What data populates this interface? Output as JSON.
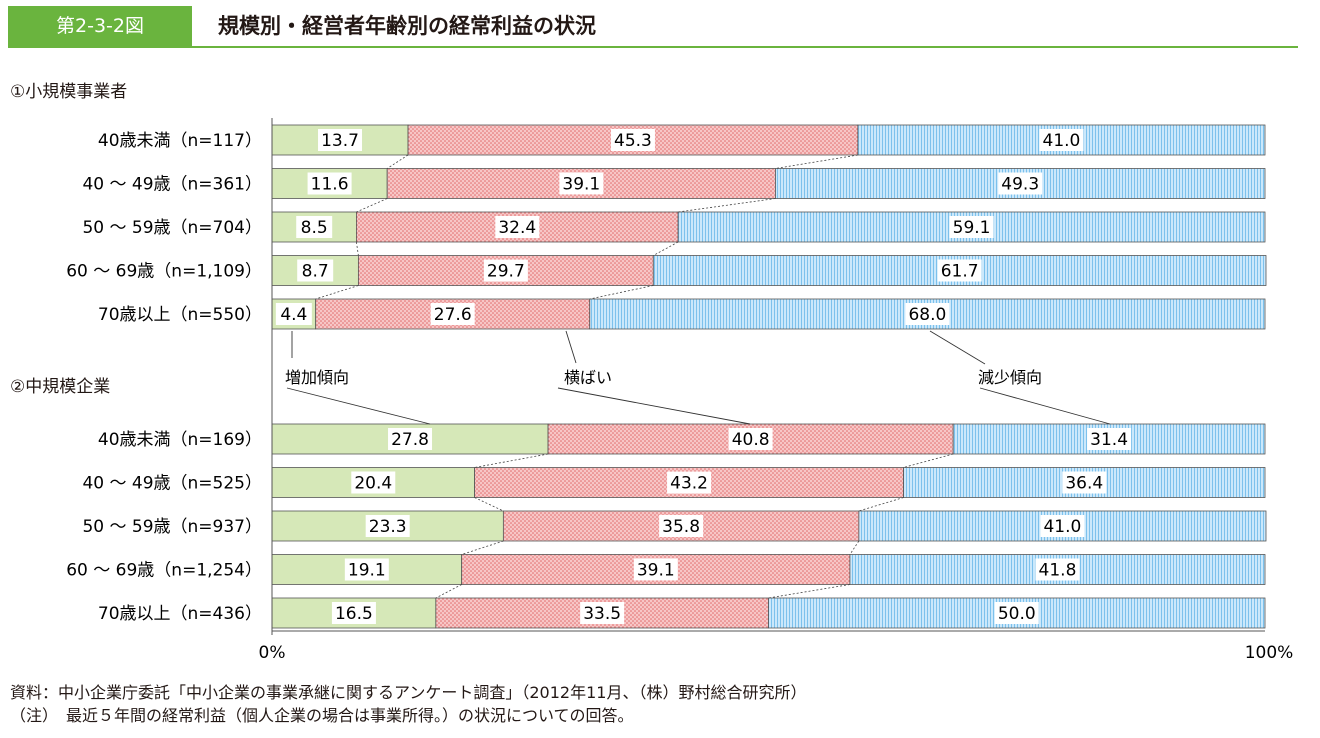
{
  "header": {
    "figure_number": "第2-3-2図",
    "title": "規模別・経営者年齢別の経常利益の状況"
  },
  "chart_data": [
    {
      "type": "bar",
      "orientation": "horizontal",
      "stacked": "percent",
      "section_title": "①小規模事業者",
      "categories": [
        "40歳未満（n=117）",
        "40 〜 49歳（n=361）",
        "50 〜 59歳（n=704）",
        "60 〜 69歳（n=1,109）",
        "70歳以上（n=550）"
      ],
      "series": [
        {
          "name": "増加傾向",
          "color": "#d6e8b8",
          "values": [
            13.7,
            11.6,
            8.5,
            8.7,
            4.4
          ]
        },
        {
          "name": "横ばい",
          "color": "#f5b9b9",
          "values": [
            45.3,
            39.1,
            32.4,
            29.7,
            27.6
          ]
        },
        {
          "name": "減少傾向",
          "color": "#b8def5",
          "values": [
            41.0,
            49.3,
            59.1,
            61.7,
            68.0
          ]
        }
      ],
      "xlim": [
        0,
        100
      ],
      "legend": "annotated between panels"
    },
    {
      "type": "bar",
      "orientation": "horizontal",
      "stacked": "percent",
      "section_title": "②中規模企業",
      "categories": [
        "40歳未満（n=169）",
        "40 〜 49歳（n=525）",
        "50 〜 59歳（n=937）",
        "60 〜 69歳（n=1,254）",
        "70歳以上（n=436）"
      ],
      "series": [
        {
          "name": "増加傾向",
          "color": "#d6e8b8",
          "values": [
            27.8,
            20.4,
            23.3,
            19.1,
            16.5
          ]
        },
        {
          "name": "横ばい",
          "color": "#f5b9b9",
          "values": [
            40.8,
            43.2,
            35.8,
            39.1,
            33.5
          ]
        },
        {
          "name": "減少傾向",
          "color": "#b8def5",
          "values": [
            31.4,
            36.4,
            41.0,
            41.8,
            50.0
          ]
        }
      ],
      "xlim": [
        0,
        100
      ],
      "x_tick_labels": [
        "0%",
        "100%"
      ]
    }
  ],
  "footer": {
    "source": "資料：中小企業庁委託「中小企業の事業承継に関するアンケート調査」（2012年11月、（株）野村総合研究所）",
    "note": "（注）　最近５年間の経常利益（個人企業の場合は事業所得。）の状況についての回答。"
  }
}
